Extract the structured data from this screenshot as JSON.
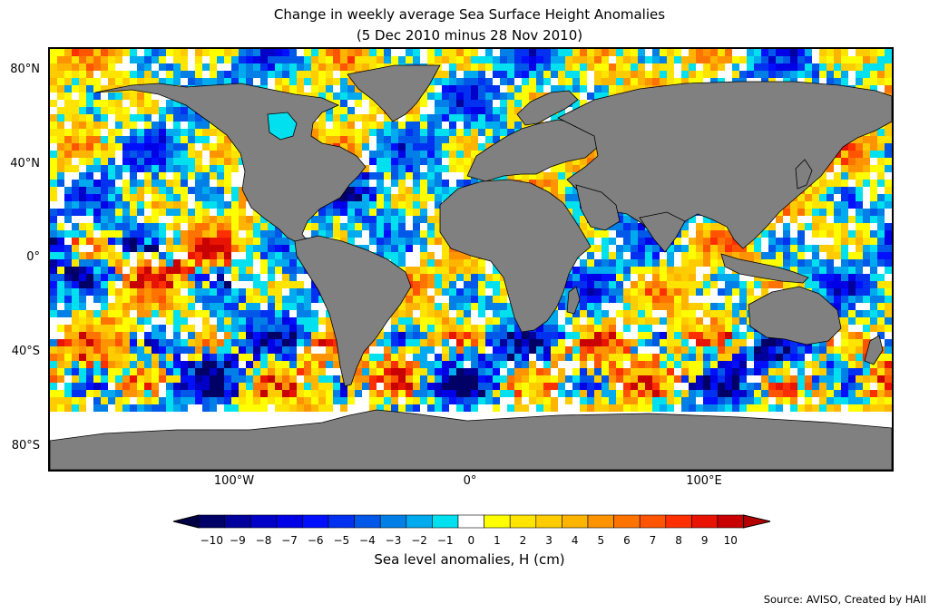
{
  "title_line1": "Change in weekly average Sea Surface Height Anomalies",
  "title_line2": "(5 Dec 2010 minus 28 Nov 2010)",
  "source_note": "Source: AVISO, Created by HAII",
  "map": {
    "projection": "equirectangular",
    "lat_ticks": [
      "80°N",
      "40°N",
      "0°",
      "40°S",
      "80°S"
    ],
    "lon_ticks": [
      "100°W",
      "0°",
      "100°E"
    ],
    "lat_tick_values": [
      80,
      40,
      0,
      -40,
      -80
    ],
    "lon_tick_values": [
      -100,
      0,
      100
    ],
    "lon_range": [
      -180,
      180
    ],
    "lat_range": [
      -90,
      90
    ],
    "land_color": "#808080",
    "no_data_color": "#ffffff",
    "coastline_color": "#000000"
  },
  "colorbar": {
    "label": "Sea level anomalies, H (cm)",
    "orientation": "horizontal",
    "extend": "both",
    "tick_labels": [
      "−10",
      "−9",
      "−8",
      "−7",
      "−6",
      "−5",
      "−4",
      "−3",
      "−2",
      "−1",
      "0",
      "1",
      "2",
      "3",
      "4",
      "5",
      "6",
      "7",
      "8",
      "9",
      "10"
    ],
    "colors": [
      "#000066",
      "#00009c",
      "#0000c8",
      "#0000e6",
      "#0010ff",
      "#0030f0",
      "#0058e8",
      "#0080e6",
      "#00aaee",
      "#00e0ee",
      "#ffffff",
      "#ffff00",
      "#ffe400",
      "#ffcc00",
      "#ffb400",
      "#ff9400",
      "#ff7400",
      "#ff5400",
      "#ff3000",
      "#e81400",
      "#c80000"
    ],
    "under_color": "#000044",
    "over_color": "#b40000"
  }
}
